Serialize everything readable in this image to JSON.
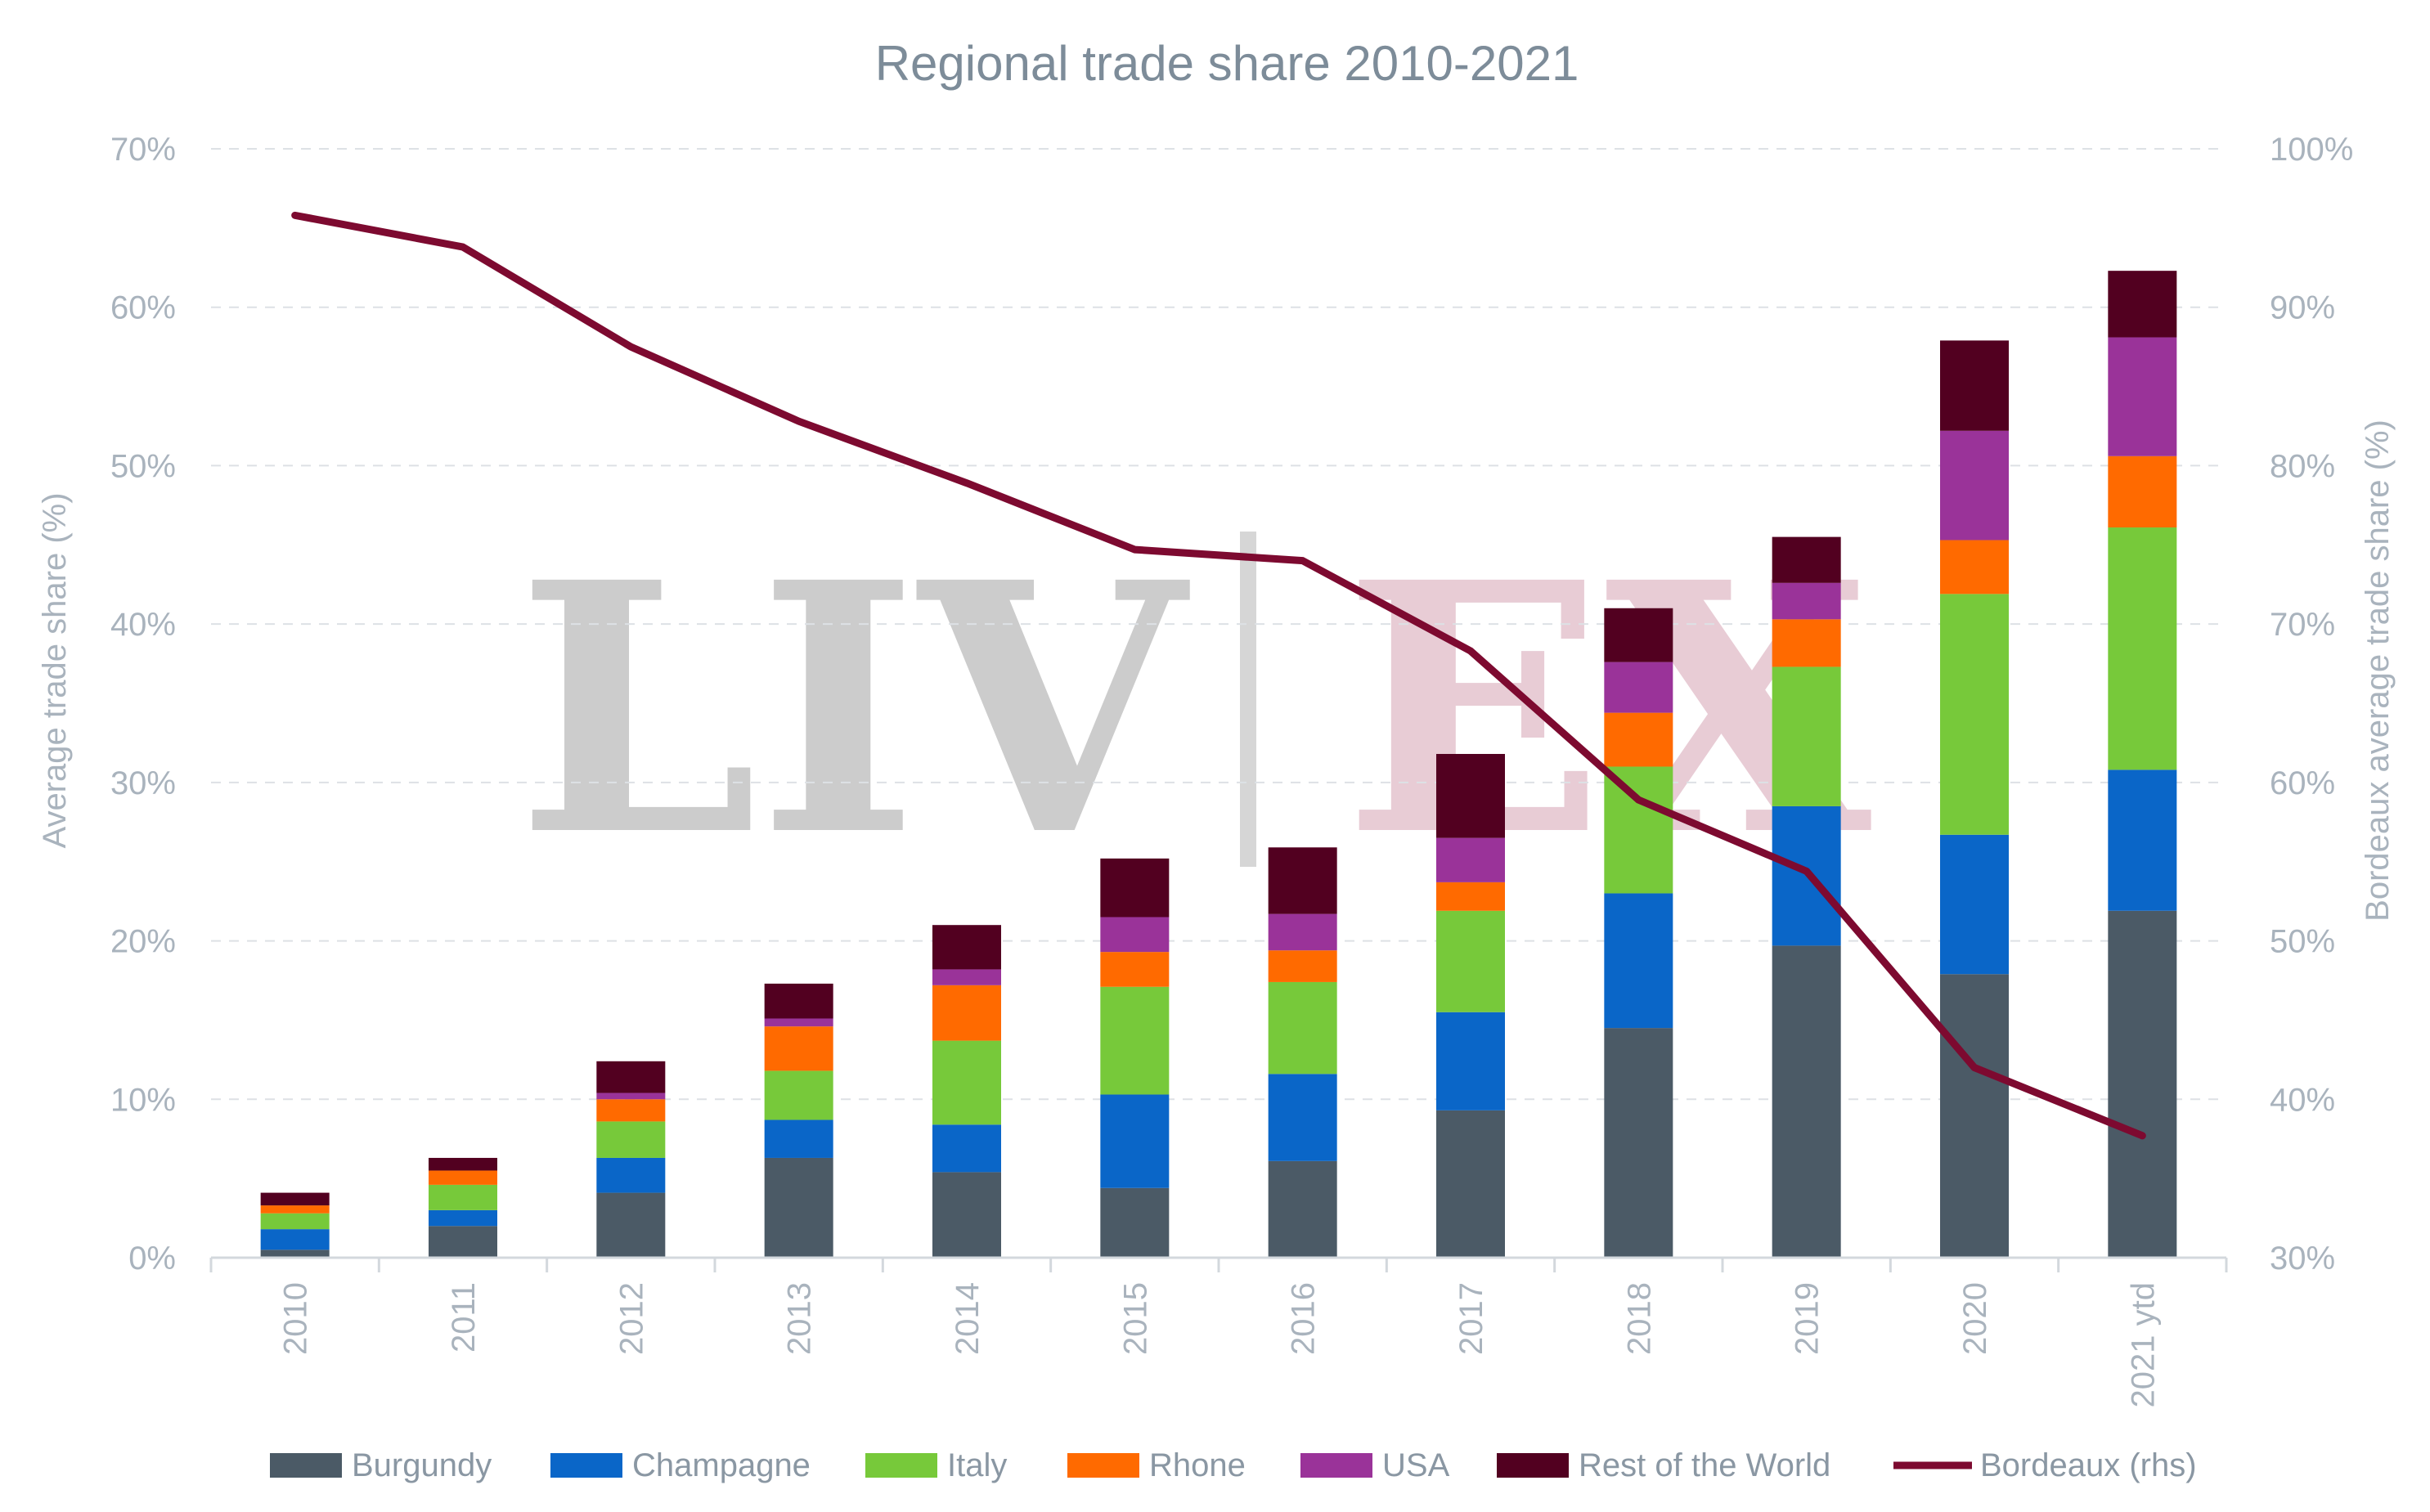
{
  "chart_data": {
    "type": "bar",
    "stacked": true,
    "title": "Regional trade share 2010-2021",
    "ylabel": "Average trade share (%)",
    "y2label": "Bordeaux average trade share (%)",
    "ylim": [
      0,
      70
    ],
    "y2lim": [
      30,
      100
    ],
    "yticks": [
      "0%",
      "10%",
      "20%",
      "30%",
      "40%",
      "50%",
      "60%",
      "70%"
    ],
    "y2ticks": [
      "30%",
      "40%",
      "50%",
      "60%",
      "70%",
      "80%",
      "90%",
      "100%"
    ],
    "grid": true,
    "legend_position": "bottom",
    "categories": [
      "2010",
      "2011",
      "2012",
      "2013",
      "2014",
      "2015",
      "2016",
      "2017",
      "2018",
      "2019",
      "2020",
      "2021 ytd"
    ],
    "series": [
      {
        "name": "Burgundy",
        "color": "#4b5a66",
        "values": [
          0.5,
          2.0,
          4.1,
          6.3,
          5.4,
          4.4,
          6.1,
          9.3,
          14.5,
          19.7,
          17.9,
          21.9
        ]
      },
      {
        "name": "Champagne",
        "color": "#0a66c8",
        "values": [
          1.3,
          1.0,
          2.2,
          2.4,
          3.0,
          5.9,
          5.5,
          6.2,
          8.5,
          8.8,
          8.8,
          8.9
        ]
      },
      {
        "name": "Italy",
        "color": "#77c93a",
        "values": [
          1.0,
          1.6,
          2.3,
          3.1,
          5.3,
          6.8,
          5.8,
          6.4,
          8.0,
          8.8,
          15.2,
          15.3
        ]
      },
      {
        "name": "Rhone",
        "color": "#ff6a00",
        "values": [
          0.5,
          0.9,
          1.4,
          2.8,
          3.5,
          2.2,
          2.0,
          1.8,
          3.4,
          3.0,
          3.4,
          4.5
        ]
      },
      {
        "name": "USA",
        "color": "#9a3399",
        "values": [
          0.0,
          0.0,
          0.4,
          0.5,
          1.0,
          2.2,
          2.3,
          2.8,
          3.2,
          2.3,
          6.9,
          7.5
        ]
      },
      {
        "name": "Rest of the World",
        "color": "#520020",
        "values": [
          0.8,
          0.8,
          2.0,
          2.2,
          2.8,
          3.7,
          4.2,
          5.3,
          3.4,
          2.9,
          5.7,
          4.2
        ]
      }
    ],
    "line_series": {
      "name": "Bordeaux (rhs)",
      "axis": "right",
      "color": "#7d0a30",
      "values": [
        95.8,
        93.8,
        87.5,
        82.8,
        78.9,
        74.7,
        74.0,
        68.3,
        58.9,
        54.4,
        42.0,
        37.7
      ]
    }
  },
  "watermark": {
    "left_text": "LIV",
    "right_text": "EX",
    "left_color": "#cccccc",
    "right_color": "#e8ccd5"
  }
}
